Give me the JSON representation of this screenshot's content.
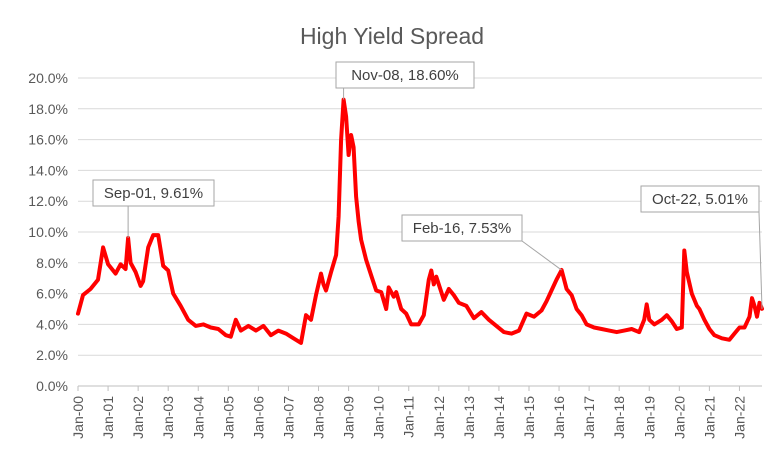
{
  "chart_data": {
    "type": "line",
    "title": "High Yield Spread",
    "xlabel": "",
    "ylabel": "",
    "ylim": [
      0,
      20
    ],
    "y_tick_labels": [
      "0.0%",
      "2.0%",
      "4.0%",
      "6.0%",
      "8.0%",
      "10.0%",
      "12.0%",
      "14.0%",
      "16.0%",
      "18.0%",
      "20.0%"
    ],
    "x_tick_labels": [
      "Jan-00",
      "Jan-01",
      "Jan-02",
      "Jan-03",
      "Jan-04",
      "Jan-05",
      "Jan-06",
      "Jan-07",
      "Jan-08",
      "Jan-09",
      "Jan-10",
      "Jan-11",
      "Jan-12",
      "Jan-13",
      "Jan-14",
      "Jan-15",
      "Jan-16",
      "Jan-17",
      "Jan-18",
      "Jan-19",
      "Jan-20",
      "Jan-21",
      "Jan-22"
    ],
    "grid": "horizontal",
    "legend": "none",
    "line_color": "#ff0000",
    "series": [
      {
        "points": [
          [
            "Jan-00",
            4.7
          ],
          [
            "Mar-00",
            5.9
          ],
          [
            "Jun-00",
            6.3
          ],
          [
            "Sep-00",
            6.9
          ],
          [
            "Nov-00",
            9.0
          ],
          [
            "Jan-01",
            7.9
          ],
          [
            "Apr-01",
            7.3
          ],
          [
            "Jun-01",
            7.9
          ],
          [
            "Aug-01",
            7.6
          ],
          [
            "Sep-01",
            9.61
          ],
          [
            "Oct-01",
            8.0
          ],
          [
            "Dec-01",
            7.4
          ],
          [
            "Feb-02",
            6.5
          ],
          [
            "Mar-02",
            6.8
          ],
          [
            "May-02",
            9.0
          ],
          [
            "Jul-02",
            9.8
          ],
          [
            "Sep-02",
            9.8
          ],
          [
            "Nov-02",
            7.8
          ],
          [
            "Jan-03",
            7.5
          ],
          [
            "Mar-03",
            6.0
          ],
          [
            "Jun-03",
            5.2
          ],
          [
            "Sep-03",
            4.3
          ],
          [
            "Dec-03",
            3.9
          ],
          [
            "Mar-04",
            4.0
          ],
          [
            "Jun-04",
            3.8
          ],
          [
            "Sep-04",
            3.7
          ],
          [
            "Dec-04",
            3.3
          ],
          [
            "Feb-05",
            3.2
          ],
          [
            "Apr-05",
            4.3
          ],
          [
            "Jun-05",
            3.6
          ],
          [
            "Sep-05",
            3.9
          ],
          [
            "Dec-05",
            3.6
          ],
          [
            "Mar-06",
            3.9
          ],
          [
            "Jun-06",
            3.3
          ],
          [
            "Sep-06",
            3.6
          ],
          [
            "Dec-06",
            3.4
          ],
          [
            "Mar-07",
            3.1
          ],
          [
            "Jun-07",
            2.8
          ],
          [
            "Jul-07",
            3.7
          ],
          [
            "Aug-07",
            4.6
          ],
          [
            "Oct-07",
            4.3
          ],
          [
            "Dec-07",
            5.9
          ],
          [
            "Feb-08",
            7.3
          ],
          [
            "Mar-08",
            6.6
          ],
          [
            "Apr-08",
            6.2
          ],
          [
            "Jun-08",
            7.4
          ],
          [
            "Aug-08",
            8.5
          ],
          [
            "Sep-08",
            11.0
          ],
          [
            "Oct-08",
            16.0
          ],
          [
            "Nov-08",
            18.6
          ],
          [
            "Dec-08",
            17.5
          ],
          [
            "Jan-09",
            15.0
          ],
          [
            "Feb-09",
            16.3
          ],
          [
            "Mar-09",
            15.5
          ],
          [
            "Apr-09",
            12.3
          ],
          [
            "May-09",
            10.7
          ],
          [
            "Jun-09",
            9.5
          ],
          [
            "Aug-09",
            8.2
          ],
          [
            "Oct-09",
            7.2
          ],
          [
            "Dec-09",
            6.2
          ],
          [
            "Feb-10",
            6.1
          ],
          [
            "Apr-10",
            5.0
          ],
          [
            "May-10",
            6.4
          ],
          [
            "Jul-10",
            5.8
          ],
          [
            "Aug-10",
            6.1
          ],
          [
            "Oct-10",
            5.0
          ],
          [
            "Dec-10",
            4.7
          ],
          [
            "Feb-11",
            4.0
          ],
          [
            "May-11",
            4.0
          ],
          [
            "Jul-11",
            4.6
          ],
          [
            "Sep-11",
            6.9
          ],
          [
            "Oct-11",
            7.5
          ],
          [
            "Nov-11",
            6.6
          ],
          [
            "Dec-11",
            7.1
          ],
          [
            "Mar-12",
            5.6
          ],
          [
            "May-12",
            6.3
          ],
          [
            "Jul-12",
            5.9
          ],
          [
            "Sep-12",
            5.4
          ],
          [
            "Dec-12",
            5.2
          ],
          [
            "Mar-13",
            4.4
          ],
          [
            "Jun-13",
            4.8
          ],
          [
            "Sep-13",
            4.3
          ],
          [
            "Dec-13",
            3.9
          ],
          [
            "Mar-14",
            3.5
          ],
          [
            "Jun-14",
            3.4
          ],
          [
            "Sep-14",
            3.6
          ],
          [
            "Dec-14",
            4.7
          ],
          [
            "Mar-15",
            4.5
          ],
          [
            "Jun-15",
            4.9
          ],
          [
            "Aug-15",
            5.5
          ],
          [
            "Oct-15",
            6.2
          ],
          [
            "Dec-15",
            6.9
          ],
          [
            "Feb-16",
            7.53
          ],
          [
            "Apr-16",
            6.3
          ],
          [
            "Jun-16",
            5.9
          ],
          [
            "Aug-16",
            5.0
          ],
          [
            "Oct-16",
            4.6
          ],
          [
            "Dec-16",
            4.0
          ],
          [
            "Mar-17",
            3.8
          ],
          [
            "Jun-17",
            3.7
          ],
          [
            "Sep-17",
            3.6
          ],
          [
            "Dec-17",
            3.5
          ],
          [
            "Mar-18",
            3.6
          ],
          [
            "Jun-18",
            3.7
          ],
          [
            "Sep-18",
            3.5
          ],
          [
            "Nov-18",
            4.3
          ],
          [
            "Dec-18",
            5.3
          ],
          [
            "Jan-19",
            4.3
          ],
          [
            "Mar-19",
            4.0
          ],
          [
            "Jun-19",
            4.3
          ],
          [
            "Aug-19",
            4.6
          ],
          [
            "Oct-19",
            4.2
          ],
          [
            "Dec-19",
            3.7
          ],
          [
            "Feb-20",
            3.8
          ],
          [
            "Mar-20",
            8.8
          ],
          [
            "Apr-20",
            7.4
          ],
          [
            "Jun-20",
            6.0
          ],
          [
            "Aug-20",
            5.2
          ],
          [
            "Sep-20",
            5.0
          ],
          [
            "Nov-20",
            4.3
          ],
          [
            "Jan-21",
            3.7
          ],
          [
            "Mar-21",
            3.3
          ],
          [
            "Jun-21",
            3.1
          ],
          [
            "Sep-21",
            3.0
          ],
          [
            "Nov-21",
            3.4
          ],
          [
            "Jan-22",
            3.8
          ],
          [
            "Mar-22",
            3.8
          ],
          [
            "May-22",
            4.5
          ],
          [
            "Jun-22",
            5.7
          ],
          [
            "Jul-22",
            5.2
          ],
          [
            "Aug-22",
            4.5
          ],
          [
            "Sep-22",
            5.4
          ],
          [
            "Oct-22",
            5.01
          ]
        ]
      }
    ],
    "annotations": [
      {
        "label": "Sep-01, 9.61%",
        "x": "Sep-01",
        "y": 9.61
      },
      {
        "label": "Nov-08, 18.60%",
        "x": "Nov-08",
        "y": 18.6
      },
      {
        "label": "Feb-16, 7.53%",
        "x": "Feb-16",
        "y": 7.53
      },
      {
        "label": "Oct-22, 5.01%",
        "x": "Oct-22",
        "y": 5.01
      }
    ]
  }
}
